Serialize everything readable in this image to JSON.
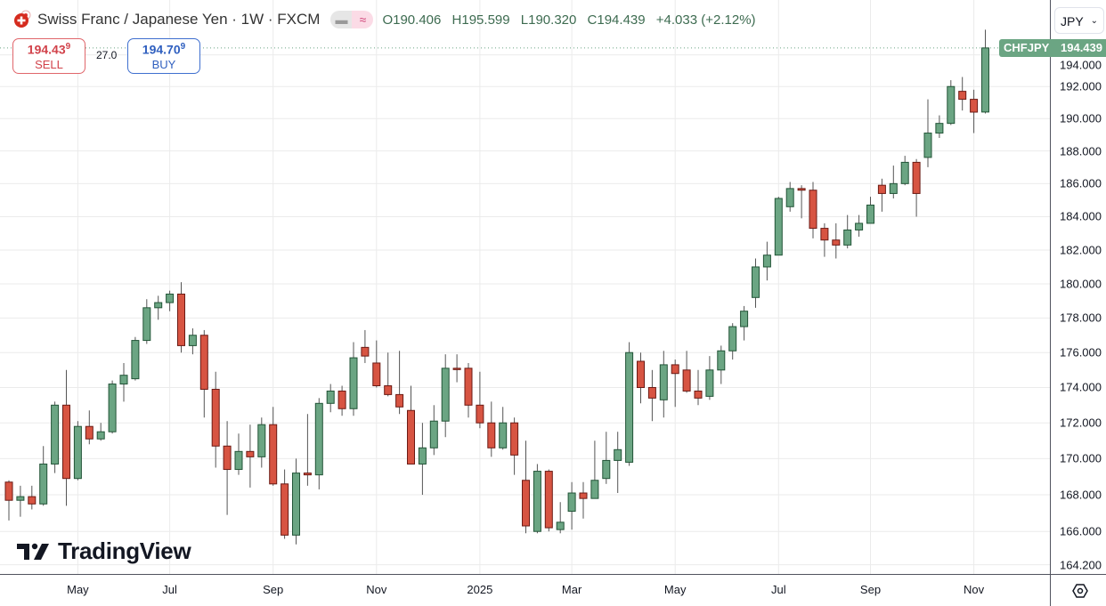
{
  "header": {
    "title": "Swiss Franc / Japanese Yen · 1W · FXCM",
    "open_label": "O",
    "open": "190.406",
    "high_label": "H",
    "high": "195.599",
    "low_label": "L",
    "low": "190.320",
    "close_label": "C",
    "close": "194.439",
    "change": "+4.033 (+2.12%)",
    "pill_icons": [
      "minus-icon",
      "wave-icon"
    ]
  },
  "trade": {
    "sell_price": "194.43",
    "sell_price_sup": "9",
    "sell_label": "SELL",
    "spread": "27.0",
    "buy_price": "194.70",
    "buy_price_sup": "9",
    "buy_label": "BUY"
  },
  "currency_select": "JPY",
  "current_price": {
    "symbol": "CHFJPY",
    "value": "194.439"
  },
  "logo": "TradingView",
  "colors": {
    "up": "#6ba583",
    "up_border": "#225437",
    "down": "#d75442",
    "down_border": "#6b1a14",
    "grid": "#ebebeb",
    "text": "#131722"
  },
  "chart_data": {
    "type": "candlestick",
    "symbol": "CHFJPY",
    "interval": "1W",
    "y_scale": "log",
    "ylim": [
      163.5,
      196.2
    ],
    "grid": true,
    "y_ticks": [
      "164.200",
      "166.000",
      "168.000",
      "170.000",
      "172.000",
      "174.000",
      "176.000",
      "178.000",
      "180.000",
      "182.000",
      "184.000",
      "186.000",
      "188.000",
      "190.000",
      "192.000",
      "194.000"
    ],
    "x_ticks": [
      {
        "label": "May",
        "date": "2024-05-06"
      },
      {
        "label": "Jul",
        "date": "2024-07-01"
      },
      {
        "label": "Sep",
        "date": "2024-09-02"
      },
      {
        "label": "Nov",
        "date": "2024-11-04"
      },
      {
        "label": "2025",
        "date": "2025-01-06"
      },
      {
        "label": "Mar",
        "date": "2025-03-03"
      },
      {
        "label": "May",
        "date": "2025-05-05"
      },
      {
        "label": "Jul",
        "date": "2025-07-07"
      },
      {
        "label": "Sep",
        "date": "2025-09-01"
      },
      {
        "label": "Nov",
        "date": "2025-11-03"
      }
    ],
    "columns": [
      "date",
      "open",
      "high",
      "low",
      "close"
    ],
    "candles": [
      [
        "2024-03-25",
        168.7,
        168.8,
        166.6,
        167.7
      ],
      [
        "2024-04-01",
        167.7,
        168.5,
        166.8,
        167.9
      ],
      [
        "2024-04-08",
        167.9,
        168.5,
        167.2,
        167.5
      ],
      [
        "2024-04-15",
        167.5,
        170.7,
        167.4,
        169.7
      ],
      [
        "2024-04-22",
        169.7,
        173.2,
        169.2,
        173.0
      ],
      [
        "2024-04-29",
        173.0,
        175.0,
        167.4,
        168.9
      ],
      [
        "2024-05-06",
        168.9,
        172.1,
        168.8,
        171.8
      ],
      [
        "2024-05-13",
        171.8,
        172.7,
        170.8,
        171.1
      ],
      [
        "2024-05-20",
        171.1,
        172.0,
        171.0,
        171.5
      ],
      [
        "2024-05-27",
        171.5,
        174.4,
        171.4,
        174.2
      ],
      [
        "2024-06-03",
        174.2,
        175.4,
        173.2,
        174.7
      ],
      [
        "2024-06-10",
        174.5,
        176.9,
        174.4,
        176.7
      ],
      [
        "2024-06-17",
        176.7,
        179.1,
        176.5,
        178.6
      ],
      [
        "2024-06-24",
        178.6,
        179.3,
        177.9,
        178.9
      ],
      [
        "2024-07-01",
        178.9,
        179.6,
        178.4,
        179.4
      ],
      [
        "2024-07-08",
        179.4,
        180.1,
        176.0,
        176.4
      ],
      [
        "2024-07-15",
        176.4,
        177.4,
        175.9,
        177.0
      ],
      [
        "2024-07-22",
        177.0,
        177.3,
        172.3,
        173.9
      ],
      [
        "2024-07-29",
        173.9,
        174.9,
        169.5,
        170.7
      ],
      [
        "2024-08-05",
        170.7,
        172.1,
        166.9,
        169.4
      ],
      [
        "2024-08-12",
        169.4,
        171.4,
        169.1,
        170.4
      ],
      [
        "2024-08-19",
        170.4,
        171.9,
        168.4,
        170.1
      ],
      [
        "2024-08-26",
        170.1,
        172.3,
        169.5,
        171.9
      ],
      [
        "2024-09-02",
        171.9,
        172.9,
        168.5,
        168.6
      ],
      [
        "2024-09-09",
        168.6,
        169.4,
        165.6,
        165.8
      ],
      [
        "2024-09-16",
        165.8,
        170.0,
        165.3,
        169.2
      ],
      [
        "2024-09-23",
        169.2,
        172.5,
        168.5,
        169.1
      ],
      [
        "2024-09-30",
        169.1,
        173.4,
        168.3,
        173.1
      ],
      [
        "2024-10-07",
        173.1,
        174.2,
        172.6,
        173.8
      ],
      [
        "2024-10-14",
        173.8,
        174.1,
        172.4,
        172.8
      ],
      [
        "2024-10-21",
        172.8,
        176.6,
        172.4,
        175.7
      ],
      [
        "2024-10-28",
        176.3,
        177.3,
        175.4,
        175.8
      ],
      [
        "2024-11-04",
        175.4,
        176.7,
        174.0,
        174.1
      ],
      [
        "2024-11-11",
        174.1,
        176.0,
        173.5,
        173.6
      ],
      [
        "2024-11-18",
        173.6,
        176.1,
        172.5,
        172.9
      ],
      [
        "2024-11-25",
        172.7,
        174.1,
        169.7,
        169.7
      ],
      [
        "2024-12-02",
        169.7,
        172.0,
        168.0,
        170.6
      ],
      [
        "2024-12-09",
        170.6,
        173.0,
        170.2,
        172.1
      ],
      [
        "2024-12-16",
        172.1,
        175.9,
        171.2,
        175.1
      ],
      [
        "2024-12-23",
        175.1,
        175.9,
        174.3,
        175.05
      ],
      [
        "2024-12-30",
        175.1,
        175.4,
        172.3,
        173.0
      ],
      [
        "2025-01-06",
        173.0,
        174.9,
        171.7,
        172.0
      ],
      [
        "2025-01-13",
        172.0,
        173.2,
        170.1,
        170.6
      ],
      [
        "2025-01-20",
        170.6,
        172.9,
        170.5,
        172.0
      ],
      [
        "2025-01-27",
        172.0,
        172.3,
        169.1,
        170.2
      ],
      [
        "2025-02-03",
        168.8,
        171.0,
        165.9,
        166.3
      ],
      [
        "2025-02-10",
        166.0,
        169.7,
        165.9,
        169.3
      ],
      [
        "2025-02-17",
        169.3,
        169.4,
        166.0,
        166.2
      ],
      [
        "2025-02-24",
        166.1,
        167.6,
        165.9,
        166.5
      ],
      [
        "2025-03-03",
        167.1,
        168.7,
        166.1,
        168.1
      ],
      [
        "2025-03-10",
        168.1,
        168.7,
        166.7,
        167.8
      ],
      [
        "2025-03-17",
        167.8,
        171.0,
        167.8,
        168.8
      ],
      [
        "2025-03-24",
        168.9,
        171.5,
        168.6,
        169.9
      ],
      [
        "2025-03-31",
        169.9,
        171.5,
        168.1,
        170.5
      ],
      [
        "2025-04-07",
        169.8,
        176.6,
        169.6,
        176.0
      ],
      [
        "2025-04-14",
        175.5,
        176.0,
        173.1,
        174.0
      ],
      [
        "2025-04-21",
        174.0,
        175.0,
        172.1,
        173.4
      ],
      [
        "2025-04-28",
        173.3,
        176.1,
        172.3,
        175.3
      ],
      [
        "2025-05-05",
        175.3,
        175.6,
        172.9,
        174.8
      ],
      [
        "2025-05-12",
        175.0,
        176.1,
        173.7,
        173.8
      ],
      [
        "2025-05-19",
        173.8,
        175.0,
        173.0,
        173.4
      ],
      [
        "2025-05-26",
        173.5,
        175.8,
        173.3,
        175.0
      ],
      [
        "2025-06-02",
        175.0,
        176.4,
        174.2,
        176.1
      ],
      [
        "2025-06-09",
        176.1,
        177.7,
        175.6,
        177.5
      ],
      [
        "2025-06-16",
        177.5,
        178.7,
        176.7,
        178.4
      ],
      [
        "2025-06-23",
        179.2,
        181.5,
        178.6,
        181.0
      ],
      [
        "2025-06-30",
        181.0,
        182.5,
        180.2,
        181.7
      ],
      [
        "2025-07-07",
        181.7,
        185.2,
        181.7,
        185.1
      ],
      [
        "2025-07-14",
        184.6,
        186.1,
        184.3,
        185.7
      ],
      [
        "2025-07-21",
        185.7,
        185.9,
        183.9,
        185.6
      ],
      [
        "2025-07-28",
        185.6,
        186.1,
        182.7,
        183.3
      ],
      [
        "2025-08-04",
        183.3,
        183.6,
        181.6,
        182.6
      ],
      [
        "2025-08-11",
        182.6,
        183.6,
        181.5,
        182.3
      ],
      [
        "2025-08-18",
        182.3,
        184.1,
        182.1,
        183.2
      ],
      [
        "2025-08-25",
        183.2,
        184.1,
        182.8,
        183.6
      ],
      [
        "2025-09-01",
        183.6,
        185.2,
        183.6,
        184.7
      ],
      [
        "2025-09-08",
        185.9,
        186.3,
        184.3,
        185.4
      ],
      [
        "2025-09-15",
        185.4,
        187.1,
        185.1,
        186.0
      ],
      [
        "2025-09-22",
        186.0,
        187.7,
        185.9,
        187.3
      ],
      [
        "2025-09-29",
        187.3,
        187.5,
        184.0,
        185.4
      ],
      [
        "2025-10-06",
        187.6,
        191.2,
        187.0,
        189.1
      ],
      [
        "2025-10-13",
        189.1,
        190.2,
        188.8,
        189.7
      ],
      [
        "2025-10-20",
        189.7,
        192.4,
        189.6,
        192.0
      ],
      [
        "2025-10-27",
        191.7,
        192.6,
        190.5,
        191.2
      ],
      [
        "2025-11-03",
        191.2,
        191.8,
        189.1,
        190.4
      ],
      [
        "2025-11-10",
        190.406,
        195.599,
        190.32,
        194.439
      ]
    ]
  }
}
